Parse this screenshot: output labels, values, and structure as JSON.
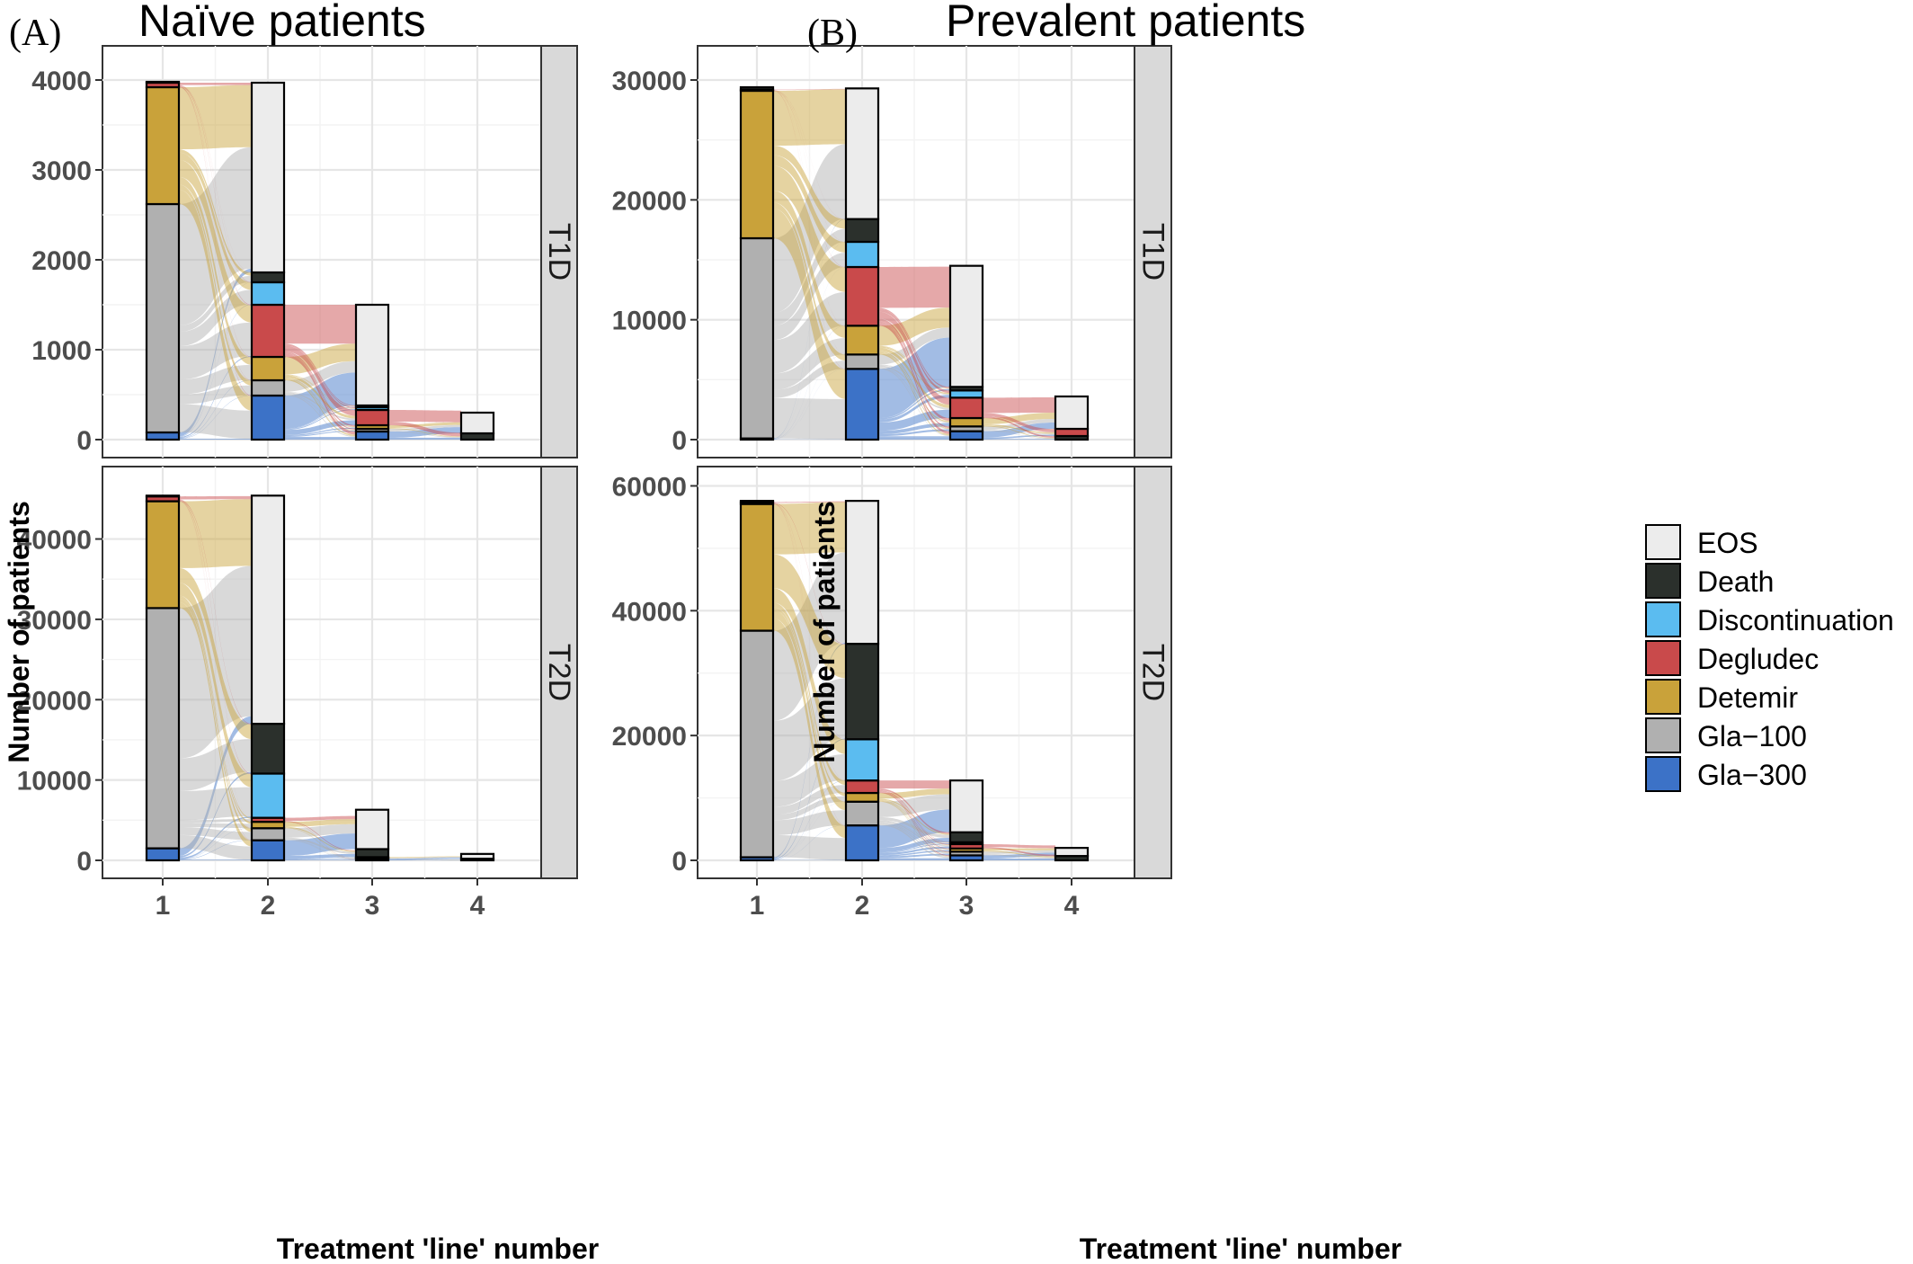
{
  "figure": {
    "left": {
      "letter": "(A)",
      "title": "Naïve patients"
    },
    "right": {
      "letter": "(B)",
      "title": "Prevalent patients"
    }
  },
  "legend": [
    {
      "label": "EOS",
      "color": "#ececec"
    },
    {
      "label": "Death",
      "color": "#2b302c"
    },
    {
      "label": "Discontinuation",
      "color": "#5bbcf0"
    },
    {
      "label": "Degludec",
      "color": "#c94a4b"
    },
    {
      "label": "Detemir",
      "color": "#c9a23a"
    },
    {
      "label": "Gla−100",
      "color": "#b0b0b0"
    },
    {
      "label": "Gla−300",
      "color": "#3c72c7"
    }
  ],
  "chart_data": [
    {
      "type": "alluvial",
      "group": "Naïve patients",
      "facet": "T1D",
      "xlabel": "Treatment 'line' number",
      "ylabel": "Number of patients",
      "categories": [
        "1",
        "2",
        "3",
        "4"
      ],
      "y_ticks": [
        0,
        1000,
        2000,
        3000,
        4000
      ],
      "ylim": [
        0,
        4200
      ],
      "stacks": [
        [
          [
            "Gla−300",
            80
          ],
          [
            "Gla−100",
            2540
          ],
          [
            "Detemir",
            1300
          ],
          [
            "Degludec",
            50
          ],
          [
            "Death",
            10
          ]
        ],
        [
          [
            "Gla−300",
            490
          ],
          [
            "Gla−100",
            170
          ],
          [
            "Detemir",
            260
          ],
          [
            "Degludec",
            580
          ],
          [
            "Discontinuation",
            250
          ],
          [
            "Death",
            110
          ],
          [
            "EOS",
            2110
          ]
        ],
        [
          [
            "Gla−300",
            90
          ],
          [
            "Gla−100",
            30
          ],
          [
            "Detemir",
            40
          ],
          [
            "Degludec",
            170
          ],
          [
            "Discontinuation",
            30
          ],
          [
            "Death",
            20
          ],
          [
            "EOS",
            1120
          ]
        ],
        [
          [
            "Death",
            70
          ],
          [
            "EOS",
            230
          ]
        ]
      ]
    },
    {
      "type": "alluvial",
      "group": "Naïve patients",
      "facet": "T2D",
      "xlabel": "Treatment 'line' number",
      "ylabel": "Number of patients",
      "categories": [
        "1",
        "2",
        "3",
        "4"
      ],
      "y_ticks": [
        0,
        10000,
        20000,
        30000,
        40000
      ],
      "ylim": [
        0,
        47000
      ],
      "stacks": [
        [
          [
            "Gla−300",
            1500
          ],
          [
            "Gla−100",
            29900
          ],
          [
            "Detemir",
            13300
          ],
          [
            "Degludec",
            600
          ],
          [
            "Death",
            100
          ]
        ],
        [
          [
            "Gla−300",
            2500
          ],
          [
            "Gla−100",
            1500
          ],
          [
            "Detemir",
            800
          ],
          [
            "Degludec",
            500
          ],
          [
            "Discontinuation",
            5500
          ],
          [
            "Death",
            6200
          ],
          [
            "EOS",
            28400
          ]
        ],
        [
          [
            "Gla−300",
            200
          ],
          [
            "Gla−100",
            100
          ],
          [
            "Detemir",
            100
          ],
          [
            "Death",
            1000
          ],
          [
            "EOS",
            4900
          ]
        ],
        [
          [
            "Death",
            200
          ],
          [
            "EOS",
            600
          ]
        ]
      ]
    },
    {
      "type": "alluvial",
      "group": "Prevalent patients",
      "facet": "T1D",
      "xlabel": "Treatment 'line' number",
      "ylabel": "Number of patients",
      "categories": [
        "1",
        "2",
        "3",
        "4"
      ],
      "y_ticks": [
        0,
        10000,
        20000,
        30000
      ],
      "ylim": [
        0,
        31500
      ],
      "stacks": [
        [
          [
            "Gla−300",
            100
          ],
          [
            "Gla−100",
            16700
          ],
          [
            "Detemir",
            12300
          ],
          [
            "Degludec",
            100
          ],
          [
            "Death",
            200
          ]
        ],
        [
          [
            "Gla−300",
            5900
          ],
          [
            "Gla−100",
            1200
          ],
          [
            "Detemir",
            2400
          ],
          [
            "Degludec",
            4900
          ],
          [
            "Discontinuation",
            2100
          ],
          [
            "Death",
            1900
          ],
          [
            "EOS",
            10900
          ]
        ],
        [
          [
            "Gla−300",
            700
          ],
          [
            "Gla−100",
            400
          ],
          [
            "Detemir",
            700
          ],
          [
            "Degludec",
            1700
          ],
          [
            "Discontinuation",
            600
          ],
          [
            "Death",
            300
          ],
          [
            "EOS",
            10100
          ]
        ],
        [
          [
            "Death",
            300
          ],
          [
            "Degludec",
            600
          ],
          [
            "EOS",
            2700
          ]
        ]
      ]
    },
    {
      "type": "alluvial",
      "group": "Prevalent patients",
      "facet": "T2D",
      "xlabel": "Treatment 'line' number",
      "ylabel": "Number of patients",
      "categories": [
        "1",
        "2",
        "3",
        "4"
      ],
      "y_ticks": [
        0,
        20000,
        40000,
        60000
      ],
      "ylim": [
        0,
        60500
      ],
      "stacks": [
        [
          [
            "Gla−300",
            500
          ],
          [
            "Gla−100",
            36300
          ],
          [
            "Detemir",
            20300
          ],
          [
            "Degludec",
            300
          ],
          [
            "Death",
            200
          ]
        ],
        [
          [
            "Gla−300",
            5600
          ],
          [
            "Gla−100",
            3800
          ],
          [
            "Detemir",
            1400
          ],
          [
            "Degludec",
            2000
          ],
          [
            "Discontinuation",
            6600
          ],
          [
            "Death",
            15300
          ],
          [
            "EOS",
            22900
          ]
        ],
        [
          [
            "Gla−300",
            800
          ],
          [
            "Gla−100",
            600
          ],
          [
            "Detemir",
            500
          ],
          [
            "Degludec",
            700
          ],
          [
            "Discontinuation",
            300
          ],
          [
            "Death",
            1600
          ],
          [
            "EOS",
            8300
          ]
        ],
        [
          [
            "Death",
            700
          ],
          [
            "EOS",
            1300
          ]
        ]
      ]
    }
  ]
}
